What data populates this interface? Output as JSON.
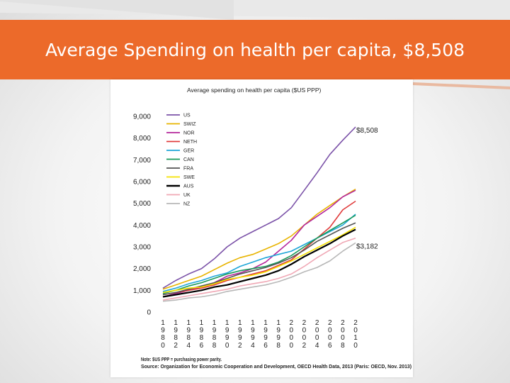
{
  "slide": {
    "title": "Average Spending on health per capita, $8,508"
  },
  "colors": {
    "title_bar": "#ec6a2a"
  },
  "chart_data": {
    "type": "line",
    "title": "Average spending on health per capita ($US PPP)",
    "xlabel": "",
    "ylabel": "",
    "x": [
      1980,
      1982,
      1984,
      1986,
      1988,
      1990,
      1992,
      1994,
      1996,
      1998,
      2000,
      2002,
      2004,
      2006,
      2008,
      2010
    ],
    "x_tick_labels": [
      "1980",
      "1982",
      "1984",
      "1986",
      "1988",
      "1990",
      "1992",
      "1994",
      "1996",
      "1998",
      "2000",
      "2002",
      "2004",
      "2006",
      "2008",
      "2010"
    ],
    "y_ticks": [
      0,
      1000,
      2000,
      3000,
      4000,
      5000,
      6000,
      7000,
      8000,
      9000
    ],
    "y_tick_labels": [
      "0",
      "1,000",
      "2,000",
      "3,000",
      "4,000",
      "5,000",
      "6,000",
      "7,000",
      "8,000",
      "9,000"
    ],
    "ylim": [
      0,
      9000
    ],
    "grid": false,
    "legend_position": "top-left",
    "series": [
      {
        "name": "US",
        "color": "#7b52a8",
        "values": [
          1100,
          1450,
          1750,
          2000,
          2450,
          3000,
          3400,
          3700,
          4000,
          4300,
          4800,
          5600,
          6400,
          7250,
          7900,
          8508
        ]
      },
      {
        "name": "SWIZ",
        "color": "#e8b400",
        "values": [
          1050,
          1250,
          1450,
          1650,
          1950,
          2250,
          2500,
          2650,
          2900,
          3150,
          3500,
          4000,
          4500,
          4900,
          5300,
          5650
        ]
      },
      {
        "name": "NOR",
        "color": "#b5279c",
        "values": [
          700,
          850,
          1000,
          1150,
          1350,
          1650,
          1800,
          2000,
          2300,
          2800,
          3300,
          4000,
          4400,
          4800,
          5300,
          5600
        ]
      },
      {
        "name": "NETH",
        "color": "#e03c3c",
        "values": [
          800,
          900,
          1000,
          1100,
          1250,
          1450,
          1600,
          1750,
          1900,
          2150,
          2400,
          2900,
          3400,
          3900,
          4700,
          5100
        ]
      },
      {
        "name": "GER",
        "color": "#1ea6d8",
        "values": [
          950,
          1100,
          1300,
          1450,
          1650,
          1800,
          2100,
          2300,
          2500,
          2650,
          2800,
          3100,
          3400,
          3700,
          4000,
          4500
        ]
      },
      {
        "name": "CAN",
        "color": "#1a9a5a",
        "values": [
          850,
          1000,
          1200,
          1350,
          1550,
          1750,
          1900,
          2000,
          2100,
          2300,
          2600,
          3000,
          3400,
          3750,
          4100,
          4450
        ]
      },
      {
        "name": "FRA",
        "color": "#555555",
        "values": [
          800,
          900,
          1050,
          1200,
          1350,
          1550,
          1750,
          1900,
          2050,
          2250,
          2500,
          2850,
          3250,
          3550,
          3850,
          4100
        ]
      },
      {
        "name": "SWE",
        "color": "#f5e100",
        "values": [
          900,
          1000,
          1100,
          1150,
          1300,
          1500,
          1600,
          1700,
          1850,
          2100,
          2350,
          2650,
          2950,
          3250,
          3550,
          3900
        ]
      },
      {
        "name": "AUS",
        "color": "#000000",
        "values": [
          700,
          800,
          900,
          1000,
          1150,
          1250,
          1400,
          1550,
          1700,
          1900,
          2200,
          2550,
          2850,
          3150,
          3500,
          3800
        ]
      },
      {
        "name": "UK",
        "color": "#f0a8b5",
        "values": [
          550,
          650,
          750,
          850,
          950,
          1050,
          1200,
          1300,
          1400,
          1550,
          1750,
          2100,
          2500,
          2850,
          3200,
          3400
        ]
      },
      {
        "name": "NZ",
        "color": "#b8b8b8",
        "values": [
          500,
          550,
          650,
          700,
          800,
          950,
          1050,
          1150,
          1250,
          1400,
          1600,
          1850,
          2050,
          2350,
          2800,
          3182
        ]
      }
    ],
    "annotations": [
      {
        "text": "$8,508",
        "x": 2010,
        "y": 8508
      },
      {
        "text": "$3,182",
        "x": 2010,
        "y": 3182
      }
    ],
    "notes": [
      "Note: $US PPP = purchasing power parity.",
      "Source: Organization for Economic Cooperation and Development, OECD Health Data, 2013 (Paris: OECD, Nov. 2013)"
    ]
  }
}
